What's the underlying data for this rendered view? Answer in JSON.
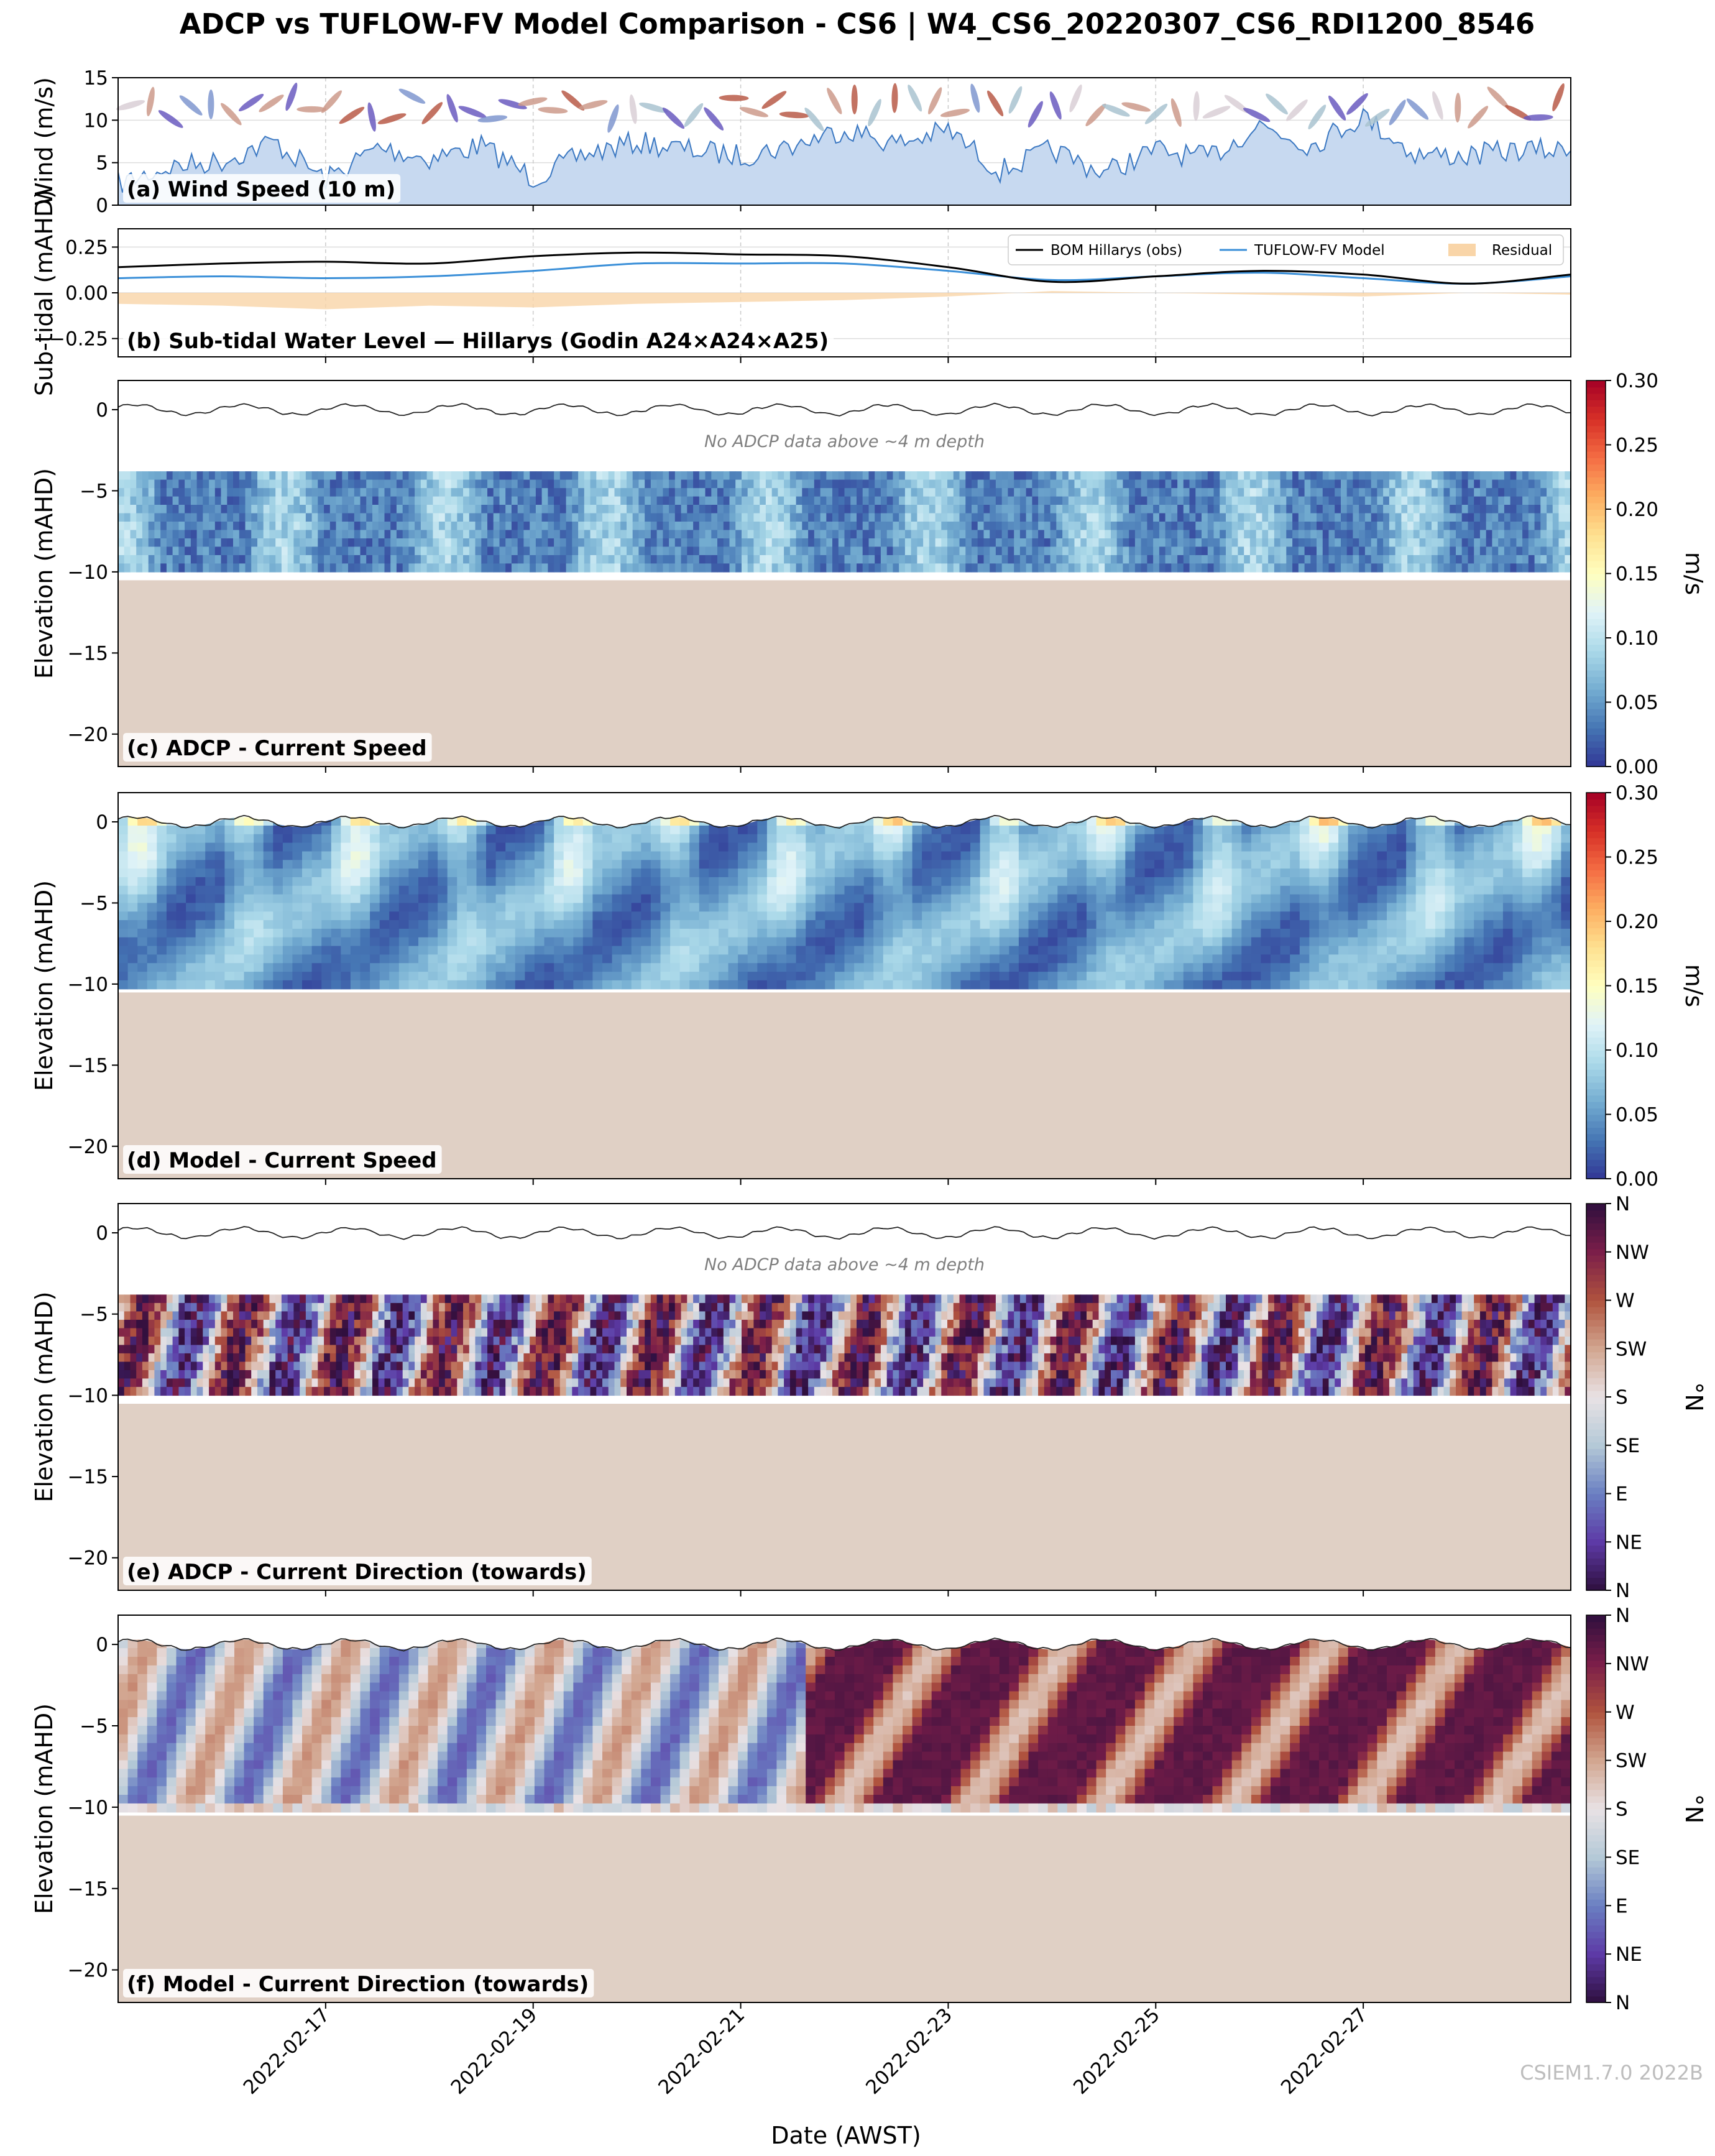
{
  "title": "ADCP vs TUFLOW-FV Model Comparison - CS6 | W4_CS6_20220307_CS6_RDI1200_8546",
  "credit": "CSIEM1.7.0 2022B",
  "colors": {
    "wind_fill": "#c7d9f0",
    "wind_line": "#3b78c2",
    "obs_line": "#000000",
    "model_line": "#3a8fd8",
    "residual_fill": "#f9d5a8",
    "seabed": "#e0d0c5",
    "speed_cmap": [
      "#313695",
      "#4575b4",
      "#74add1",
      "#abd9e9",
      "#e0f3f8",
      "#ffffbf",
      "#fee090",
      "#fdae61",
      "#f46d43",
      "#d73027",
      "#a50026"
    ],
    "dir_cmap": [
      "#2f0f3e",
      "#5d3aa6",
      "#6a7fc2",
      "#b4c9d7",
      "#e9e2e5",
      "#d2a690",
      "#b0533e",
      "#7b1e49",
      "#2f0f3e"
    ]
  },
  "chart_data": [
    {
      "id": "a",
      "type": "area",
      "panel_label": "(a) Wind Speed (10 m)",
      "ylabel": "Wind (m/s)",
      "ylim": [
        0,
        15
      ],
      "yticks": [
        "0",
        "5",
        "10",
        "15"
      ],
      "x_range": [
        "2022-02-15",
        "2022-02-29"
      ],
      "x": [
        "2022-02-15",
        "2022-02-15T12",
        "2022-02-16",
        "2022-02-16T12",
        "2022-02-17",
        "2022-02-17T12",
        "2022-02-18",
        "2022-02-18T12",
        "2022-02-19",
        "2022-02-19T12",
        "2022-02-20",
        "2022-02-20T12",
        "2022-02-21",
        "2022-02-21T12",
        "2022-02-22",
        "2022-02-22T12",
        "2022-02-23",
        "2022-02-23T12",
        "2022-02-24",
        "2022-02-24T12",
        "2022-02-25",
        "2022-02-25T12",
        "2022-02-26",
        "2022-02-26T12",
        "2022-02-27",
        "2022-02-27T12",
        "2022-02-28",
        "2022-02-28T12",
        "2022-02-29"
      ],
      "values": [
        2.5,
        4.5,
        5.2,
        7.5,
        3.0,
        6.8,
        5.5,
        7.0,
        3.2,
        6.0,
        7.4,
        6.5,
        5.8,
        7.0,
        9.0,
        7.2,
        8.8,
        4.0,
        6.5,
        3.8,
        6.5,
        5.5,
        9.5,
        7.0,
        10.5,
        6.0,
        5.8,
        6.5,
        6.4
      ],
      "wind_direction_arrows": true,
      "grid": true
    },
    {
      "id": "b",
      "type": "line",
      "panel_label": "(b) Sub-tidal Water Level — Hillarys (Godin A24×A24×A25)",
      "ylabel": "Sub-tidal (mAHD)",
      "ylim": [
        -0.35,
        0.35
      ],
      "yticks": [
        "−0.25",
        "0.00",
        "0.25"
      ],
      "x": [
        "2022-02-15",
        "2022-02-16",
        "2022-02-17",
        "2022-02-18",
        "2022-02-19",
        "2022-02-20",
        "2022-02-21",
        "2022-02-22",
        "2022-02-23",
        "2022-02-24",
        "2022-02-25",
        "2022-02-26",
        "2022-02-27",
        "2022-02-28",
        "2022-02-29"
      ],
      "series": [
        {
          "name": "BOM Hillarys (obs)",
          "values": [
            0.14,
            0.16,
            0.17,
            0.16,
            0.2,
            0.22,
            0.21,
            0.2,
            0.14,
            0.06,
            0.09,
            0.12,
            0.1,
            0.05,
            0.1
          ]
        },
        {
          "name": "TUFLOW-FV Model",
          "values": [
            0.08,
            0.09,
            0.08,
            0.09,
            0.12,
            0.16,
            0.16,
            0.16,
            0.12,
            0.07,
            0.09,
            0.11,
            0.08,
            0.05,
            0.09
          ]
        },
        {
          "name": "Residual",
          "values": [
            -0.06,
            -0.07,
            -0.09,
            -0.07,
            -0.08,
            -0.06,
            -0.05,
            -0.04,
            -0.02,
            0.01,
            0.0,
            -0.01,
            -0.02,
            0.0,
            -0.01
          ]
        }
      ],
      "legend": "top-right",
      "grid": true
    },
    {
      "id": "c",
      "type": "heatmap",
      "panel_label": "(c) ADCP - Current Speed",
      "ylabel": "Elevation (mAHD)",
      "ylim": [
        -22,
        1.8
      ],
      "yticks": [
        "0",
        "−5",
        "−10",
        "−15",
        "−20"
      ],
      "data_range_elev": [
        -10,
        -3.8
      ],
      "seabed_elev": -10.5,
      "note": "No ADCP data above ~4 m depth",
      "colorbar": {
        "label": "m/s",
        "ticks": [
          "0.00",
          "0.05",
          "0.10",
          "0.15",
          "0.20",
          "0.25",
          "0.30"
        ],
        "range": [
          0,
          0.3
        ]
      }
    },
    {
      "id": "d",
      "type": "heatmap",
      "panel_label": "(d) Model - Current Speed",
      "ylabel": "Elevation (mAHD)",
      "ylim": [
        -22,
        1.8
      ],
      "yticks": [
        "0",
        "−5",
        "−10",
        "−15",
        "−20"
      ],
      "data_range_elev": [
        -10.3,
        0.3
      ],
      "seabed_elev": -10.5,
      "colorbar": {
        "label": "m/s",
        "ticks": [
          "0.00",
          "0.05",
          "0.10",
          "0.15",
          "0.20",
          "0.25",
          "0.30"
        ],
        "range": [
          0,
          0.3
        ]
      }
    },
    {
      "id": "e",
      "type": "heatmap",
      "panel_label": "(e) ADCP - Current Direction (towards)",
      "ylabel": "Elevation (mAHD)",
      "ylim": [
        -22,
        1.8
      ],
      "yticks": [
        "0",
        "−5",
        "−10",
        "−15",
        "−20"
      ],
      "data_range_elev": [
        -10,
        -3.8
      ],
      "seabed_elev": -10.5,
      "note": "No ADCP data above ~4 m depth",
      "colorbar": {
        "label": "°N",
        "ticks": [
          "N",
          "NE",
          "E",
          "SE",
          "S",
          "SW",
          "W",
          "NW",
          "N"
        ],
        "range": [
          0,
          360
        ]
      }
    },
    {
      "id": "f",
      "type": "heatmap",
      "panel_label": "(f) Model - Current Direction (towards)",
      "ylabel": "Elevation (mAHD)",
      "ylim": [
        -22,
        1.8
      ],
      "yticks": [
        "0",
        "−5",
        "−10",
        "−15",
        "−20"
      ],
      "data_range_elev": [
        -10.3,
        0.3
      ],
      "seabed_elev": -10.5,
      "colorbar": {
        "label": "°N",
        "ticks": [
          "N",
          "NE",
          "E",
          "SE",
          "S",
          "SW",
          "W",
          "NW",
          "N"
        ],
        "range": [
          0,
          360
        ]
      }
    }
  ],
  "xaxis": {
    "label": "Date (AWST)",
    "range": [
      "2022-02-15",
      "2022-02-29"
    ],
    "ticks": [
      "2022-02-17",
      "2022-02-19",
      "2022-02-21",
      "2022-02-23",
      "2022-02-25",
      "2022-02-27"
    ]
  }
}
